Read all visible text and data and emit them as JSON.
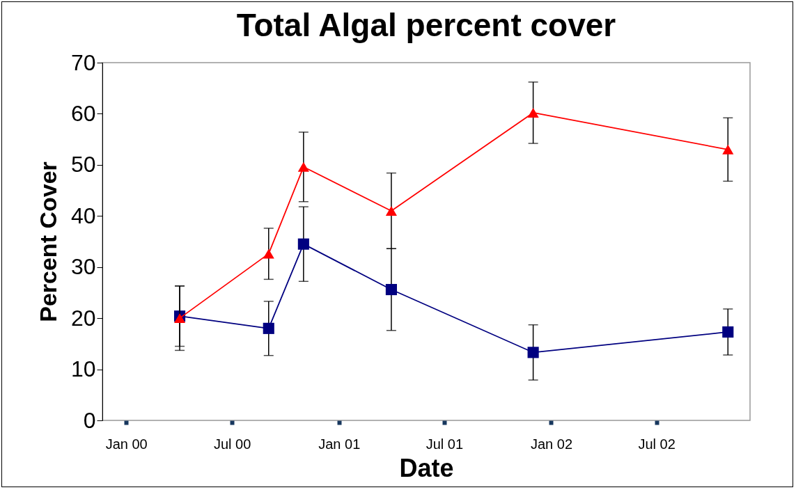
{
  "chart_data": {
    "type": "line",
    "title": "Total Algal percent cover",
    "xlabel": "Date",
    "ylabel": "Percent Cover",
    "x": [
      "2000-04-02",
      "2000-09-02",
      "2000-11-01",
      "2001-04-01",
      "2001-12-01",
      "2002-11-01"
    ],
    "series": [
      {
        "color": "#ff0000",
        "marker": "triangle",
        "values": [
          20.0,
          32.6,
          49.6,
          41.0,
          60.2,
          53.0
        ],
        "errors": [
          6.3,
          5.0,
          6.8,
          7.4,
          6.0,
          6.2
        ]
      },
      {
        "color": "#000080",
        "marker": "square",
        "values": [
          20.4,
          18.0,
          34.5,
          25.6,
          13.3,
          17.3
        ],
        "errors": [
          5.9,
          5.3,
          7.3,
          8.0,
          5.4,
          4.5
        ]
      }
    ],
    "xlim": [
      "1999-11-21",
      "2002-12-09"
    ],
    "xticks": [
      {
        "value": "2000-01-01",
        "label": "Jan 00"
      },
      {
        "value": "2000-07-01",
        "label": "Jul 00"
      },
      {
        "value": "2001-01-01",
        "label": "Jan 01"
      },
      {
        "value": "2001-07-01",
        "label": "Jul 01"
      },
      {
        "value": "2002-01-01",
        "label": "Jan 02"
      },
      {
        "value": "2002-07-01",
        "label": "Jul 02"
      }
    ],
    "ylim": [
      0,
      70
    ],
    "yticks": [
      0,
      10,
      20,
      30,
      40,
      50,
      60,
      70
    ],
    "grid": false,
    "line_style": "solid"
  }
}
